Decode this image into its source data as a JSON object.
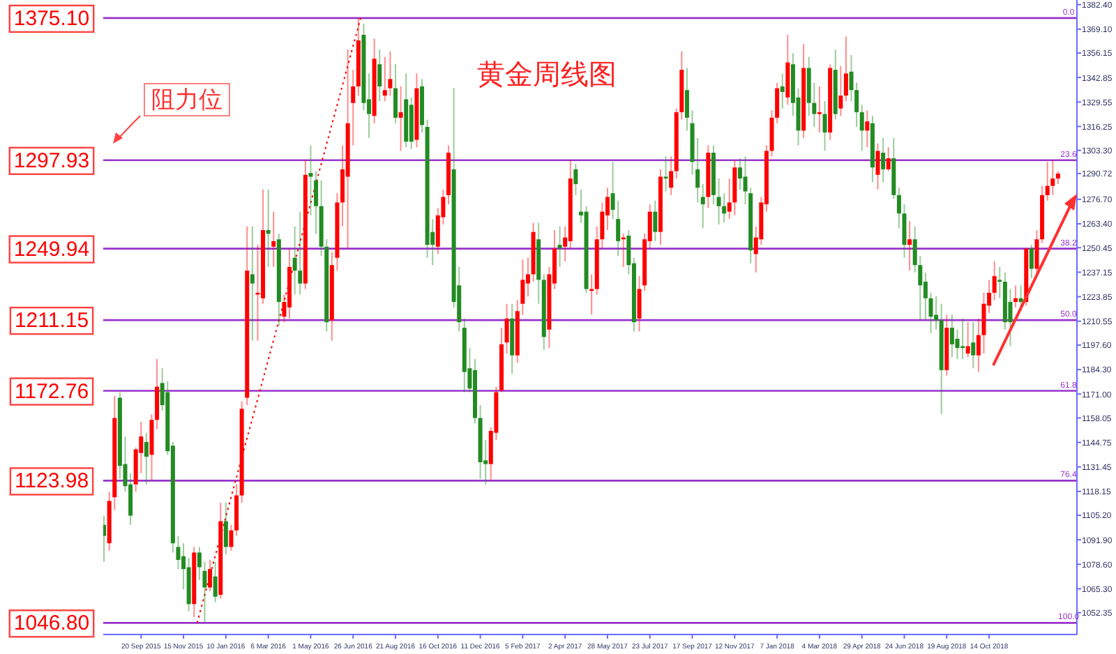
{
  "chart_data": {
    "type": "candlestick",
    "title": "黄金周线图",
    "xlim": [
      "2015-08-01",
      "2019-02-07"
    ],
    "ylim": [
      1040.5,
      1384.9
    ],
    "xticks": [
      {
        "value": "2015-09-20",
        "label": "20 Sep 2015"
      },
      {
        "value": "2015-11-15",
        "label": "15 Nov 2015"
      },
      {
        "value": "2016-01-10",
        "label": "10 Jan 2016"
      },
      {
        "value": "2016-03-06",
        "label": "6 Mar 2016"
      },
      {
        "value": "2016-05-01",
        "label": "1 May 2016"
      },
      {
        "value": "2016-06-26",
        "label": "26 Jun 2016"
      },
      {
        "value": "2016-08-21",
        "label": "21 Aug 2016"
      },
      {
        "value": "2016-10-16",
        "label": "16 Oct 2016"
      },
      {
        "value": "2016-12-11",
        "label": "11 Dec 2016"
      },
      {
        "value": "2017-02-05",
        "label": "5 Feb 2017"
      },
      {
        "value": "2017-04-02",
        "label": "2 Apr 2017"
      },
      {
        "value": "2017-05-28",
        "label": "28 May 2017"
      },
      {
        "value": "2017-07-23",
        "label": "23 Jul 2017"
      },
      {
        "value": "2017-09-17",
        "label": "17 Sep 2017"
      },
      {
        "value": "2017-11-12",
        "label": "12 Nov 2017"
      },
      {
        "value": "2018-01-07",
        "label": "7 Jan 2018"
      },
      {
        "value": "2018-03-04",
        "label": "4 Mar 2018"
      },
      {
        "value": "2018-04-29",
        "label": "29 Apr 2018"
      },
      {
        "value": "2018-06-24",
        "label": "24 Jun 2018"
      },
      {
        "value": "2018-08-19",
        "label": "19 Aug 2018"
      },
      {
        "value": "2018-10-14",
        "label": "14 Oct 2018"
      }
    ],
    "yticks": [
      {
        "value": 1382.4,
        "label": "1382.40"
      },
      {
        "value": 1369.1,
        "label": "1369.10"
      },
      {
        "value": 1356.15,
        "label": "1356.15"
      },
      {
        "value": 1342.85,
        "label": "1342.85"
      },
      {
        "value": 1329.55,
        "label": "1329.55"
      },
      {
        "value": 1316.25,
        "label": "1316.25"
      },
      {
        "value": 1303.3,
        "label": "1303.30"
      },
      {
        "value": 1290.72,
        "label": "1290.72"
      },
      {
        "value": 1276.7,
        "label": "1276.70"
      },
      {
        "value": 1263.4,
        "label": "1263.40"
      },
      {
        "value": 1250.45,
        "label": "1250.45"
      },
      {
        "value": 1237.15,
        "label": "1237.15"
      },
      {
        "value": 1223.85,
        "label": "1223.85"
      },
      {
        "value": 1210.55,
        "label": "1210.55"
      },
      {
        "value": 1197.6,
        "label": "1197.60"
      },
      {
        "value": 1184.3,
        "label": "1184.30"
      },
      {
        "value": 1171.0,
        "label": "1171.00"
      },
      {
        "value": 1158.05,
        "label": "1158.05"
      },
      {
        "value": 1144.75,
        "label": "1144.75"
      },
      {
        "value": 1131.45,
        "label": "1131.45"
      },
      {
        "value": 1118.15,
        "label": "1118.15"
      },
      {
        "value": 1105.2,
        "label": "1105.20"
      },
      {
        "value": 1091.9,
        "label": "1091.90"
      },
      {
        "value": 1078.6,
        "label": "1078.60"
      },
      {
        "value": 1065.3,
        "label": "1065.30"
      },
      {
        "value": 1052.35,
        "label": "1052.35"
      }
    ],
    "ref_lines": [
      {
        "axis": "y",
        "value": 1375.1,
        "label": "1375.10",
        "color": "#9932cc"
      },
      {
        "axis": "y",
        "value": 1297.93,
        "label": "1297.93",
        "color": "#9932cc"
      },
      {
        "axis": "y",
        "value": 1249.94,
        "label": "1249.94",
        "color": "#9932cc"
      },
      {
        "axis": "y",
        "value": 1211.15,
        "label": "1211.15",
        "color": "#9932cc"
      },
      {
        "axis": "y",
        "value": 1172.76,
        "label": "1172.76",
        "color": "#9932cc"
      },
      {
        "axis": "y",
        "value": 1123.98,
        "label": "1123.98",
        "color": "#9932cc"
      },
      {
        "axis": "y",
        "value": 1046.8,
        "label": "1046.80",
        "color": "#9932cc"
      }
    ],
    "annotations": [
      "阻力位",
      {
        "text": "0.0",
        "x": "2019-01-27",
        "y": 1375.1
      },
      {
        "text": "23.6",
        "x": "2019-01-27",
        "y": 1297.93
      },
      {
        "text": "38.2",
        "x": "2019-01-27",
        "y": 1249.94
      },
      {
        "text": "50.0",
        "x": "2019-01-27",
        "y": 1211.15
      },
      {
        "text": "61.8",
        "x": "2019-01-27",
        "y": 1172.76
      },
      {
        "text": "76.4",
        "x": "2019-01-27",
        "y": 1123.98
      },
      {
        "text": "100.0",
        "x": "2019-01-27",
        "y": 1046.8
      }
    ],
    "series": [
      {
        "type": "candlestick",
        "color": "#ff0000",
        "x": [
          "2015-08-09",
          "2015-08-16",
          "2015-09-13",
          "2015-09-20",
          "2015-10-04",
          "2015-10-11",
          "2015-11-29",
          "2015-12-20",
          "2016-01-03",
          "2016-01-17",
          "2016-01-24",
          "2016-01-31",
          "2016-02-07",
          "2016-02-21",
          "2016-02-28",
          "2016-03-13",
          "2016-03-27",
          "2016-04-03",
          "2016-04-24",
          "2016-05-29",
          "2016-06-05",
          "2016-06-12",
          "2016-06-19",
          "2016-06-26",
          "2016-07-03",
          "2016-07-24",
          "2016-08-07",
          "2016-08-14",
          "2016-08-28",
          "2016-09-18",
          "2016-10-16",
          "2016-10-23",
          "2016-10-30",
          "2016-12-25",
          "2017-01-01",
          "2017-01-08",
          "2017-01-15",
          "2017-01-29",
          "2017-02-05",
          "2017-02-12",
          "2017-02-19",
          "2017-03-12",
          "2017-03-19",
          "2017-04-02",
          "2017-04-09",
          "2017-05-07",
          "2017-05-14",
          "2017-05-21",
          "2017-05-28",
          "2017-06-18",
          "2017-07-09",
          "2017-07-16",
          "2017-07-23",
          "2017-08-06",
          "2017-08-20",
          "2017-08-27",
          "2017-09-03",
          "2017-10-08",
          "2017-11-05",
          "2017-11-12",
          "2017-12-10",
          "2017-12-17",
          "2017-12-24",
          "2017-12-31",
          "2018-01-07",
          "2018-01-21",
          "2018-02-11",
          "2018-03-04",
          "2018-03-18",
          "2018-04-01",
          "2018-04-08",
          "2018-05-06",
          "2018-05-20",
          "2018-06-03",
          "2018-07-01",
          "2018-08-19",
          "2018-09-16",
          "2018-09-30",
          "2018-10-07",
          "2018-10-14",
          "2018-10-21",
          "2018-11-18",
          "2018-12-02",
          "2018-12-16",
          "2018-12-23",
          "2018-12-30",
          "2019-01-06",
          "2019-01-13"
        ],
        "ohlc": [
          [
            1090,
            1118,
            1086,
            1113
          ],
          [
            1115,
            1170,
            1108,
            1158
          ],
          [
            1122,
            1142,
            1118,
            1141
          ],
          [
            1139,
            1156,
            1128,
            1148
          ],
          [
            1138,
            1160,
            1124,
            1157
          ],
          [
            1157,
            1190,
            1152,
            1175
          ],
          [
            1057,
            1088,
            1050,
            1085
          ],
          [
            1066,
            1081,
            1064,
            1076
          ],
          [
            1062,
            1112,
            1060,
            1102
          ],
          [
            1088,
            1100,
            1086,
            1097
          ],
          [
            1097,
            1122,
            1094,
            1116
          ],
          [
            1116,
            1167,
            1112,
            1163
          ],
          [
            1169,
            1262,
            1165,
            1238
          ],
          [
            1225,
            1252,
            1200,
            1226
          ],
          [
            1223,
            1282,
            1220,
            1260
          ],
          [
            1251,
            1270,
            1240,
            1254
          ],
          [
            1213,
            1225,
            1210,
            1221
          ],
          [
            1218,
            1250,
            1212,
            1240
          ],
          [
            1231,
            1298,
            1228,
            1290
          ],
          [
            1211,
            1248,
            1200,
            1241
          ],
          [
            1245,
            1280,
            1238,
            1275
          ],
          [
            1275,
            1306,
            1262,
            1293
          ],
          [
            1289,
            1358,
            1250,
            1318
          ],
          [
            1329,
            1347,
            1306,
            1338
          ],
          [
            1338,
            1375,
            1333,
            1363
          ],
          [
            1322,
            1364,
            1318,
            1353
          ],
          [
            1333,
            1354,
            1330,
            1336
          ],
          [
            1337,
            1357,
            1333,
            1342
          ],
          [
            1321,
            1338,
            1303,
            1324
          ],
          [
            1309,
            1345,
            1305,
            1337
          ],
          [
            1251,
            1272,
            1247,
            1268
          ],
          [
            1267,
            1282,
            1263,
            1278
          ],
          [
            1279,
            1306,
            1274,
            1302
          ],
          [
            1133,
            1153,
            1124,
            1151
          ],
          [
            1150,
            1175,
            1146,
            1172
          ],
          [
            1173,
            1207,
            1172,
            1198
          ],
          [
            1199,
            1220,
            1193,
            1212
          ],
          [
            1192,
            1222,
            1188,
            1216
          ],
          [
            1220,
            1244,
            1214,
            1233
          ],
          [
            1231,
            1245,
            1224,
            1236
          ],
          [
            1236,
            1264,
            1232,
            1259
          ],
          [
            1206,
            1240,
            1196,
            1236
          ],
          [
            1231,
            1260,
            1228,
            1250
          ],
          [
            1251,
            1262,
            1243,
            1256
          ],
          [
            1254,
            1298,
            1250,
            1288
          ],
          [
            1227,
            1236,
            1214,
            1228
          ],
          [
            1228,
            1262,
            1225,
            1255
          ],
          [
            1255,
            1275,
            1250,
            1270
          ],
          [
            1268,
            1283,
            1260,
            1278
          ],
          [
            1255,
            1258,
            1240,
            1256
          ],
          [
            1212,
            1235,
            1205,
            1228
          ],
          [
            1230,
            1258,
            1227,
            1255
          ],
          [
            1254,
            1274,
            1250,
            1270
          ],
          [
            1259,
            1293,
            1252,
            1289
          ],
          [
            1283,
            1300,
            1279,
            1292
          ],
          [
            1292,
            1326,
            1288,
            1324
          ],
          [
            1324,
            1357,
            1320,
            1347
          ],
          [
            1278,
            1306,
            1272,
            1302
          ],
          [
            1270,
            1288,
            1266,
            1275
          ],
          [
            1275,
            1298,
            1268,
            1294
          ],
          [
            1247,
            1262,
            1237,
            1256
          ],
          [
            1255,
            1278,
            1252,
            1275
          ],
          [
            1274,
            1306,
            1270,
            1303
          ],
          [
            1303,
            1325,
            1300,
            1321
          ],
          [
            1321,
            1340,
            1318,
            1337
          ],
          [
            1332,
            1366,
            1328,
            1351
          ],
          [
            1314,
            1361,
            1310,
            1348
          ],
          [
            1323,
            1338,
            1313,
            1324
          ],
          [
            1313,
            1350,
            1309,
            1348
          ],
          [
            1326,
            1349,
            1322,
            1333
          ],
          [
            1333,
            1365,
            1330,
            1345
          ],
          [
            1314,
            1325,
            1305,
            1319
          ],
          [
            1290,
            1307,
            1282,
            1303
          ],
          [
            1293,
            1305,
            1292,
            1299
          ],
          [
            1252,
            1265,
            1238,
            1255
          ],
          [
            1184,
            1214,
            1181,
            1207
          ],
          [
            1193,
            1210,
            1191,
            1197
          ],
          [
            1192,
            1212,
            1183,
            1203
          ],
          [
            1203,
            1226,
            1193,
            1220
          ],
          [
            1219,
            1233,
            1215,
            1226
          ],
          [
            1226,
            1243,
            1222,
            1235
          ],
          [
            1221,
            1230,
            1218,
            1223
          ],
          [
            1221,
            1250,
            1219,
            1250
          ],
          [
            1239,
            1260,
            1235,
            1255
          ],
          [
            1255,
            1284,
            1253,
            1279
          ],
          [
            1279,
            1297,
            1276,
            1284
          ],
          [
            1284,
            1298,
            1279,
            1288
          ],
          [
            1288,
            1292,
            1285,
            1290.72
          ]
        ]
      },
      {
        "type": "candlestick",
        "color": "#228b22",
        "x": [
          "2015-08-02",
          "2015-08-23",
          "2015-08-30",
          "2015-09-06",
          "2015-09-27",
          "2015-10-18",
          "2015-10-25",
          "2015-11-01",
          "2015-11-08",
          "2015-11-15",
          "2015-11-22",
          "2015-12-06",
          "2015-12-13",
          "2015-12-27",
          "2016-01-10",
          "2016-02-14",
          "2016-03-06",
          "2016-03-20",
          "2016-04-10",
          "2016-04-17",
          "2016-05-01",
          "2016-05-08",
          "2016-05-15",
          "2016-05-22",
          "2016-07-10",
          "2016-07-17",
          "2016-07-31",
          "2016-08-21",
          "2016-09-04",
          "2016-09-11",
          "2016-09-25",
          "2016-10-02",
          "2016-10-09",
          "2016-11-06",
          "2016-11-13",
          "2016-11-20",
          "2016-11-27",
          "2016-12-04",
          "2016-12-11",
          "2016-12-18",
          "2017-01-22",
          "2017-02-26",
          "2017-03-05",
          "2017-03-26",
          "2017-04-16",
          "2017-04-23",
          "2017-04-30",
          "2017-06-04",
          "2017-06-11",
          "2017-06-25",
          "2017-07-02",
          "2017-07-30",
          "2017-08-13",
          "2017-09-10",
          "2017-09-17",
          "2017-09-24",
          "2017-10-01",
          "2017-10-15",
          "2017-10-22",
          "2017-10-29",
          "2017-11-19",
          "2017-11-26",
          "2017-12-03",
          "2018-01-14",
          "2018-01-28",
          "2018-02-04",
          "2018-02-18",
          "2018-02-25",
          "2018-03-11",
          "2018-03-25",
          "2018-04-15",
          "2018-04-22",
          "2018-04-29",
          "2018-05-13",
          "2018-05-27",
          "2018-06-10",
          "2018-06-17",
          "2018-06-24",
          "2018-07-08",
          "2018-07-15",
          "2018-07-22",
          "2018-07-29",
          "2018-08-05",
          "2018-08-12",
          "2018-08-26",
          "2018-09-02",
          "2018-09-09",
          "2018-09-23",
          "2018-10-28",
          "2018-11-04",
          "2018-11-11",
          "2018-11-25",
          "2018-12-09"
        ],
        "ohlc": [
          [
            1100,
            1105,
            1080,
            1094
          ],
          [
            1169,
            1172,
            1125,
            1132
          ],
          [
            1133,
            1148,
            1118,
            1121
          ],
          [
            1122,
            1128,
            1100,
            1105
          ],
          [
            1145,
            1150,
            1122,
            1137
          ],
          [
            1177,
            1185,
            1162,
            1165
          ],
          [
            1172,
            1178,
            1138,
            1140
          ],
          [
            1143,
            1145,
            1085,
            1090
          ],
          [
            1088,
            1094,
            1076,
            1081
          ],
          [
            1083,
            1090,
            1065,
            1076
          ],
          [
            1077,
            1082,
            1053,
            1057
          ],
          [
            1085,
            1088,
            1070,
            1077
          ],
          [
            1075,
            1080,
            1047,
            1066
          ],
          [
            1072,
            1080,
            1058,
            1061
          ],
          [
            1102,
            1112,
            1084,
            1088
          ],
          [
            1236,
            1262,
            1200,
            1231
          ],
          [
            1260,
            1282,
            1240,
            1258
          ],
          [
            1255,
            1258,
            1208,
            1221
          ],
          [
            1245,
            1262,
            1225,
            1238
          ],
          [
            1238,
            1270,
            1225,
            1231
          ],
          [
            1291,
            1306,
            1268,
            1289
          ],
          [
            1287,
            1292,
            1258,
            1273
          ],
          [
            1273,
            1287,
            1246,
            1251
          ],
          [
            1251,
            1255,
            1205,
            1210
          ],
          [
            1366,
            1372,
            1325,
            1329
          ],
          [
            1331,
            1345,
            1310,
            1323
          ],
          [
            1350,
            1358,
            1330,
            1338
          ],
          [
            1337,
            1350,
            1318,
            1321
          ],
          [
            1331,
            1345,
            1305,
            1308
          ],
          [
            1328,
            1332,
            1304,
            1308
          ],
          [
            1338,
            1342,
            1313,
            1317
          ],
          [
            1316,
            1320,
            1245,
            1252
          ],
          [
            1259,
            1266,
            1241,
            1252
          ],
          [
            1293,
            1337,
            1218,
            1221
          ],
          [
            1230,
            1240,
            1205,
            1210
          ],
          [
            1207,
            1212,
            1172,
            1183
          ],
          [
            1185,
            1196,
            1172,
            1174
          ],
          [
            1184,
            1190,
            1155,
            1158
          ],
          [
            1158,
            1165,
            1125,
            1134
          ],
          [
            1135,
            1146,
            1122,
            1133
          ],
          [
            1212,
            1220,
            1182,
            1192
          ],
          [
            1255,
            1264,
            1220,
            1233
          ],
          [
            1233,
            1236,
            1195,
            1202
          ],
          [
            1252,
            1262,
            1240,
            1250
          ],
          [
            1293,
            1296,
            1279,
            1285
          ],
          [
            1270,
            1282,
            1264,
            1268
          ],
          [
            1270,
            1273,
            1226,
            1228
          ],
          [
            1280,
            1297,
            1266,
            1271
          ],
          [
            1266,
            1276,
            1246,
            1254
          ],
          [
            1257,
            1260,
            1236,
            1241
          ],
          [
            1242,
            1245,
            1205,
            1210
          ],
          [
            1270,
            1276,
            1254,
            1259
          ],
          [
            1289,
            1300,
            1281,
            1288
          ],
          [
            1336,
            1348,
            1314,
            1321
          ],
          [
            1318,
            1325,
            1290,
            1297
          ],
          [
            1293,
            1310,
            1275,
            1283
          ],
          [
            1278,
            1285,
            1261,
            1274
          ],
          [
            1302,
            1306,
            1274,
            1279
          ],
          [
            1278,
            1288,
            1263,
            1273
          ],
          [
            1273,
            1280,
            1264,
            1269
          ],
          [
            1294,
            1299,
            1282,
            1288
          ],
          [
            1289,
            1300,
            1274,
            1281
          ],
          [
            1280,
            1283,
            1242,
            1249
          ],
          [
            1338,
            1345,
            1326,
            1335
          ],
          [
            1350,
            1356,
            1322,
            1329
          ],
          [
            1332,
            1337,
            1306,
            1314
          ],
          [
            1348,
            1354,
            1322,
            1329
          ],
          [
            1329,
            1340,
            1316,
            1323
          ],
          [
            1323,
            1330,
            1303,
            1313
          ],
          [
            1347,
            1358,
            1320,
            1323
          ],
          [
            1346,
            1355,
            1330,
            1336
          ],
          [
            1336,
            1340,
            1316,
            1324
          ],
          [
            1324,
            1328,
            1303,
            1314
          ],
          [
            1318,
            1322,
            1286,
            1294
          ],
          [
            1302,
            1310,
            1286,
            1293
          ],
          [
            1299,
            1310,
            1277,
            1279
          ],
          [
            1279,
            1283,
            1261,
            1269
          ],
          [
            1269,
            1274,
            1245,
            1252
          ],
          [
            1255,
            1262,
            1237,
            1241
          ],
          [
            1241,
            1246,
            1211,
            1230
          ],
          [
            1232,
            1237,
            1211,
            1223
          ],
          [
            1223,
            1226,
            1204,
            1213
          ],
          [
            1214,
            1224,
            1206,
            1211
          ],
          [
            1211,
            1220,
            1160,
            1184
          ],
          [
            1207,
            1214,
            1191,
            1198
          ],
          [
            1201,
            1206,
            1190,
            1196
          ],
          [
            1197,
            1212,
            1190,
            1196
          ],
          [
            1199,
            1210,
            1185,
            1192
          ],
          [
            1233,
            1240,
            1223,
            1232
          ],
          [
            1232,
            1237,
            1206,
            1210
          ],
          [
            1221,
            1228,
            1197,
            1210
          ],
          [
            1223,
            1230,
            1216,
            1221
          ],
          [
            1250,
            1252,
            1234,
            1239
          ]
        ]
      },
      {
        "type": "line",
        "color": "#ff0000",
        "line_style": "dotted",
        "x": [
          "2015-12-03",
          "2016-07-06"
        ],
        "values": [
          1046.8,
          1375.1
        ]
      }
    ]
  }
}
